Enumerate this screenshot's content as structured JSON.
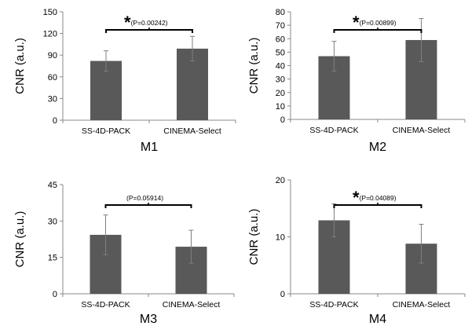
{
  "chart_data": [
    {
      "type": "bar",
      "title": "M1",
      "ylabel": "CNR (a.u.)",
      "categories": [
        "SS-4D-PACK",
        "CINEMA-Select"
      ],
      "values": [
        82,
        99
      ],
      "errors": [
        14,
        17
      ],
      "ylim": [
        0,
        150
      ],
      "yticks": [
        "0",
        "30",
        "60",
        "90",
        "120",
        "150"
      ],
      "annotation": {
        "star": "*",
        "text": "(P=0.00242)"
      }
    },
    {
      "type": "bar",
      "title": "M2",
      "ylabel": "CNR (a.u.)",
      "categories": [
        "SS-4D-PACK",
        "CINEMA-Select"
      ],
      "values": [
        47,
        59
      ],
      "errors": [
        11,
        16
      ],
      "ylim": [
        0,
        80
      ],
      "yticks": [
        "0",
        "10",
        "20",
        "30",
        "40",
        "50",
        "60",
        "70",
        "80"
      ],
      "annotation": {
        "star": "*",
        "text": "(P=0.00899)"
      }
    },
    {
      "type": "bar",
      "title": "M3",
      "ylabel": "CNR (a.u.)",
      "categories": [
        "SS-4D-PACK",
        "CINEMA-Select"
      ],
      "values": [
        24.3,
        19.4
      ],
      "errors": [
        8.2,
        6.8
      ],
      "ylim": [
        0,
        45
      ],
      "yticks": [
        "0",
        "15",
        "30",
        "45"
      ],
      "annotation": {
        "star": "",
        "text": "(P=0.05914)"
      }
    },
    {
      "type": "bar",
      "title": "M4",
      "ylabel": "CNR (a.u.)",
      "categories": [
        "SS-4D-PACK",
        "CINEMA-Select"
      ],
      "values": [
        12.9,
        8.8
      ],
      "errors": [
        2.9,
        3.4
      ],
      "ylim": [
        0,
        20
      ],
      "yticks": [
        "0",
        "10",
        "20"
      ],
      "annotation": {
        "star": "*",
        "text": "(P=0.04089)"
      }
    }
  ],
  "colors": {
    "bar": "#595959",
    "error": "#7f7f7f",
    "axis": "#888888"
  }
}
